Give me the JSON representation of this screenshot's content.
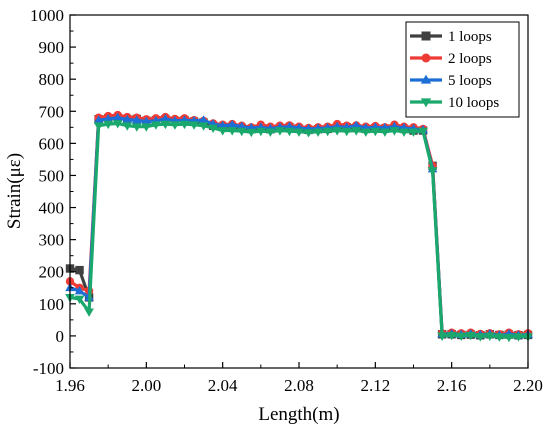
{
  "chart_data": {
    "type": "line",
    "xlabel": "Length(m)",
    "ylabel": "Strain(με)",
    "xlim": [
      1.96,
      2.2
    ],
    "ylim": [
      -100,
      1000
    ],
    "x_ticks": [
      "1.96",
      "2.00",
      "2.04",
      "2.08",
      "2.12",
      "2.16",
      "2.20"
    ],
    "y_ticks": [
      "-100",
      "0",
      "100",
      "200",
      "300",
      "400",
      "500",
      "600",
      "700",
      "800",
      "900",
      "1000"
    ],
    "grid": false,
    "legend_position": "top-right",
    "series": [
      {
        "name": "1 loops",
        "color": "#404040",
        "marker": "square",
        "x": [
          1.96,
          1.965,
          1.97,
          1.975,
          1.98,
          1.985,
          1.99,
          1.995,
          2.0,
          2.005,
          2.01,
          2.015,
          2.02,
          2.025,
          2.03,
          2.035,
          2.04,
          2.045,
          2.05,
          2.055,
          2.06,
          2.065,
          2.07,
          2.075,
          2.08,
          2.085,
          2.09,
          2.095,
          2.1,
          2.105,
          2.11,
          2.115,
          2.12,
          2.125,
          2.13,
          2.135,
          2.14,
          2.145,
          2.15,
          2.155,
          2.16,
          2.165,
          2.17,
          2.175,
          2.18,
          2.185,
          2.19,
          2.195,
          2.2
        ],
        "values": [
          210,
          205,
          120,
          675,
          678,
          680,
          675,
          676,
          670,
          672,
          675,
          670,
          672,
          668,
          665,
          655,
          652,
          650,
          648,
          645,
          646,
          644,
          648,
          650,
          646,
          642,
          644,
          645,
          648,
          650,
          648,
          645,
          647,
          646,
          648,
          645,
          640,
          640,
          530,
          5,
          5,
          3,
          4,
          2,
          5,
          3,
          4,
          2,
          3
        ]
      },
      {
        "name": "2 loops",
        "color": "#ef3b36",
        "marker": "circle",
        "x": [
          1.96,
          1.965,
          1.97,
          1.975,
          1.98,
          1.985,
          1.99,
          1.995,
          2.0,
          2.005,
          2.01,
          2.015,
          2.02,
          2.025,
          2.03,
          2.035,
          2.04,
          2.045,
          2.05,
          2.055,
          2.06,
          2.065,
          2.07,
          2.075,
          2.08,
          2.085,
          2.09,
          2.095,
          2.1,
          2.105,
          2.11,
          2.115,
          2.12,
          2.125,
          2.13,
          2.135,
          2.14,
          2.145,
          2.15,
          2.155,
          2.16,
          2.165,
          2.17,
          2.175,
          2.18,
          2.185,
          2.19,
          2.195,
          2.2
        ],
        "values": [
          170,
          150,
          140,
          680,
          685,
          688,
          682,
          680,
          675,
          678,
          682,
          676,
          678,
          672,
          670,
          662,
          658,
          660,
          655,
          650,
          658,
          652,
          655,
          656,
          652,
          648,
          650,
          652,
          660,
          655,
          656,
          652,
          654,
          650,
          658,
          652,
          650,
          645,
          530,
          8,
          10,
          8,
          10,
          6,
          8,
          5,
          10,
          5,
          8
        ]
      },
      {
        "name": "5 loops",
        "color": "#1d6fd6",
        "marker": "triangle-up",
        "x": [
          1.96,
          1.965,
          1.97,
          1.975,
          1.98,
          1.985,
          1.99,
          1.995,
          2.0,
          2.005,
          2.01,
          2.015,
          2.02,
          2.025,
          2.03,
          2.035,
          2.04,
          2.045,
          2.05,
          2.055,
          2.06,
          2.065,
          2.07,
          2.075,
          2.08,
          2.085,
          2.09,
          2.095,
          2.1,
          2.105,
          2.11,
          2.115,
          2.12,
          2.125,
          2.13,
          2.135,
          2.14,
          2.145,
          2.15,
          2.155,
          2.16,
          2.165,
          2.17,
          2.175,
          2.18,
          2.185,
          2.19,
          2.195,
          2.2
        ],
        "values": [
          150,
          140,
          120,
          672,
          676,
          680,
          674,
          672,
          668,
          670,
          676,
          670,
          672,
          670,
          672,
          660,
          655,
          658,
          652,
          648,
          650,
          646,
          650,
          652,
          648,
          645,
          646,
          648,
          652,
          650,
          655,
          648,
          650,
          648,
          652,
          648,
          645,
          642,
          520,
          6,
          6,
          4,
          6,
          3,
          6,
          2,
          6,
          2,
          4
        ]
      },
      {
        "name": "10 loops",
        "color": "#1aa86c",
        "marker": "triangle-down",
        "x": [
          1.96,
          1.965,
          1.97,
          1.975,
          1.98,
          1.985,
          1.99,
          1.995,
          2.0,
          2.005,
          2.01,
          2.015,
          2.02,
          2.025,
          2.03,
          2.035,
          2.04,
          2.045,
          2.05,
          2.055,
          2.06,
          2.065,
          2.07,
          2.075,
          2.08,
          2.085,
          2.09,
          2.095,
          2.1,
          2.105,
          2.11,
          2.115,
          2.12,
          2.125,
          2.13,
          2.135,
          2.14,
          2.145,
          2.15,
          2.155,
          2.16,
          2.165,
          2.17,
          2.175,
          2.18,
          2.185,
          2.19,
          2.195,
          2.2
        ],
        "values": [
          120,
          115,
          75,
          655,
          660,
          662,
          655,
          652,
          652,
          658,
          660,
          658,
          660,
          658,
          655,
          648,
          640,
          640,
          638,
          635,
          638,
          636,
          640,
          638,
          636,
          634,
          636,
          638,
          640,
          638,
          640,
          636,
          638,
          636,
          640,
          636,
          636,
          638,
          515,
          0,
          2,
          0,
          2,
          -2,
          0,
          -3,
          -4,
          -2,
          -2
        ]
      }
    ]
  }
}
